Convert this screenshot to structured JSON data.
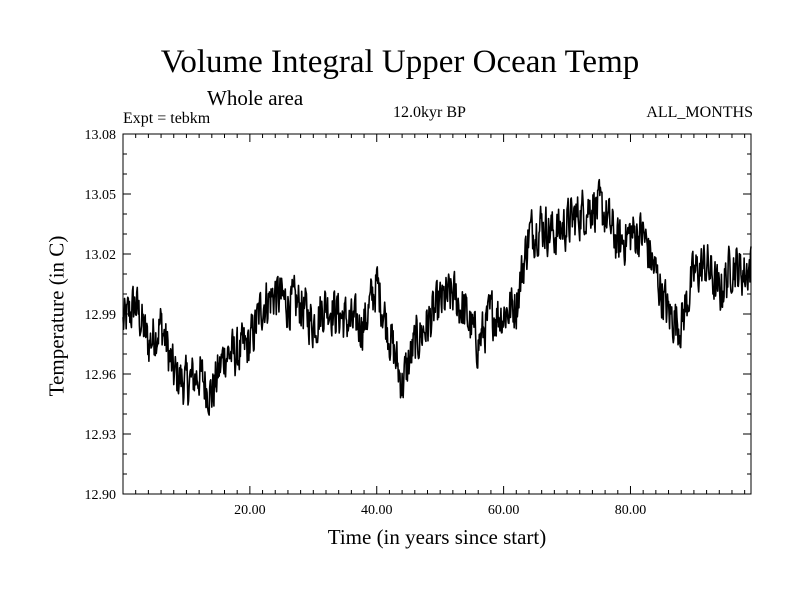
{
  "chart_data": {
    "type": "line",
    "title": "Volume Integral Upper Ocean Temp",
    "subtitle": "Whole area",
    "experiment": "Expt = tebkm",
    "period": "12.0kyr BP",
    "months": "ALL_MONTHS",
    "xlabel": "Time (in years since start)",
    "ylabel": "Temperature (in C)",
    "xlim": [
      0,
      99
    ],
    "ylim": [
      12.9,
      13.08
    ],
    "xticks": [
      20,
      40,
      60,
      80
    ],
    "xtick_labels": [
      "20.00",
      "40.00",
      "60.00",
      "80.00"
    ],
    "yticks": [
      12.9,
      12.93,
      12.96,
      12.99,
      13.02,
      13.05,
      13.08
    ],
    "ytick_labels": [
      "12.90",
      "12.93",
      "12.96",
      "12.99",
      "13.02",
      "13.05",
      "13.08"
    ],
    "grid": false,
    "series": [
      {
        "name": "Temperature",
        "color": "#000000",
        "x": [
          0,
          2,
          4,
          6,
          8,
          10,
          12,
          14,
          16,
          18,
          20,
          22,
          24,
          26,
          28,
          30,
          32,
          34,
          36,
          38,
          40,
          42,
          44,
          46,
          48,
          50,
          52,
          54,
          56,
          58,
          60,
          62,
          64,
          66,
          68,
          70,
          72,
          74,
          76,
          78,
          80,
          82,
          84,
          86,
          88,
          90,
          92,
          94,
          96,
          98,
          99
        ],
        "y": [
          12.985,
          12.995,
          12.975,
          12.985,
          12.96,
          12.955,
          12.96,
          12.95,
          12.97,
          12.97,
          12.975,
          12.995,
          13.0,
          12.995,
          12.995,
          12.985,
          12.995,
          12.99,
          12.985,
          12.985,
          13.005,
          12.98,
          12.955,
          12.975,
          12.985,
          12.995,
          13.0,
          12.99,
          12.975,
          12.99,
          12.99,
          12.995,
          13.03,
          13.035,
          13.03,
          13.035,
          13.04,
          13.045,
          13.04,
          13.025,
          13.03,
          13.03,
          13.01,
          12.99,
          12.985,
          13.01,
          13.015,
          13.0,
          13.015,
          13.01,
          13.015
        ]
      }
    ]
  }
}
